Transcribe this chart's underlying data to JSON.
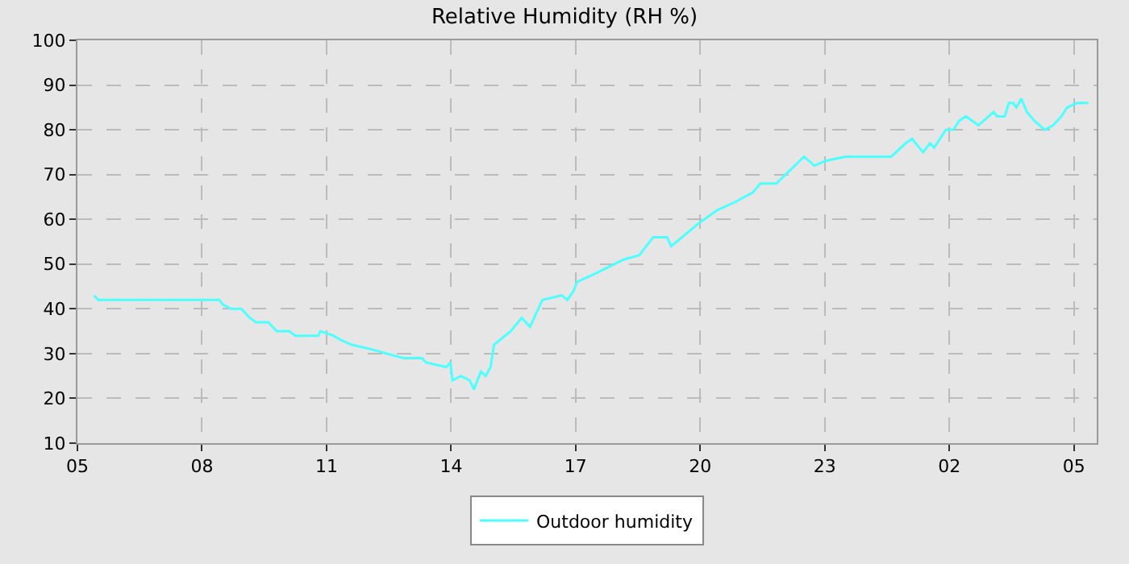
{
  "chart_data": {
    "type": "line",
    "title": "Relative Humidity (RH %)",
    "xlim": [
      "--01-01T05:00",
      "--01-02T05:33"
    ],
    "xticks": [
      {
        "value": "--01-01T05:00",
        "label": "05"
      },
      {
        "value": "--01-01T08:00",
        "label": "08"
      },
      {
        "value": "--01-01T11:00",
        "label": "11"
      },
      {
        "value": "--01-01T14:00",
        "label": "14"
      },
      {
        "value": "--01-01T17:00",
        "label": "17"
      },
      {
        "value": "--01-01T20:00",
        "label": "20"
      },
      {
        "value": "--01-01T23:00",
        "label": "23"
      },
      {
        "value": "--01-02T02:00",
        "label": "02"
      },
      {
        "value": "--01-02T05:00",
        "label": "05"
      }
    ],
    "ylim": [
      10,
      100
    ],
    "yticks": [
      10,
      20,
      30,
      40,
      50,
      60,
      70,
      80,
      90,
      100
    ],
    "grid": true,
    "legend": "bottom",
    "marker": "none",
    "line_style": "solid",
    "series": [
      {
        "name": "Outdoor humidity",
        "color": "#4dffff",
        "x": [
          "--01-01T05:24",
          "--01-01T05:30",
          "--01-01T08:25",
          "--01-01T08:30",
          "--01-01T08:42",
          "--01-01T08:57",
          "--01-01T09:09",
          "--01-01T09:18",
          "--01-01T09:36",
          "--01-01T09:48",
          "--01-01T10:06",
          "--01-01T10:15",
          "--01-01T10:48",
          "--01-01T10:51",
          "--01-01T11:10",
          "--01-01T11:21",
          "--01-01T11:36",
          "--01-01T12:04",
          "--01-01T12:27",
          "--01-01T12:51",
          "--01-01T13:18",
          "--01-01T13:24",
          "--01-01T13:53",
          "--01-01T13:59",
          "--01-01T14:02",
          "--01-01T14:14",
          "--01-01T14:27",
          "--01-01T14:33",
          "--01-01T14:43",
          "--01-01T14:50",
          "--01-01T14:57",
          "--01-01T15:02",
          "--01-01T15:26",
          "--01-01T15:42",
          "--01-01T15:54",
          "--01-01T16:12",
          "--01-01T16:40",
          "--01-01T16:48",
          "--01-01T16:57",
          "--01-01T17:02",
          "--01-01T17:30",
          "--01-01T18:09",
          "--01-01T18:32",
          "--01-01T18:52",
          "--01-01T19:12",
          "--01-01T19:18",
          "--01-01T19:57",
          "--01-01T20:24",
          "--01-01T20:52",
          "--01-01T21:16",
          "--01-01T21:27",
          "--01-01T21:50",
          "--01-01T22:10",
          "--01-01T22:30",
          "--01-01T22:45",
          "--01-01T23:00",
          "--01-01T23:30",
          "--01-02T00:36",
          "--01-02T00:57",
          "--01-02T01:06",
          "--01-02T01:22",
          "--01-02T01:32",
          "--01-02T01:38",
          "--01-02T01:55",
          "--01-02T02:06",
          "--01-02T02:14",
          "--01-02T02:24",
          "--01-02T02:42",
          "--01-02T03:04",
          "--01-02T03:09",
          "--01-02T03:20",
          "--01-02T03:26",
          "--01-02T03:32",
          "--01-02T03:37",
          "--01-02T03:44",
          "--01-02T03:52",
          "--01-02T04:03",
          "--01-02T04:18",
          "--01-02T04:30",
          "--01-02T04:42",
          "--01-02T04:50",
          "--01-02T05:05",
          "--01-02T05:21"
        ],
        "values": [
          43,
          42,
          42,
          41,
          40,
          40,
          38,
          37,
          37,
          35,
          35,
          34,
          34,
          35,
          34,
          33,
          32,
          31,
          30,
          29,
          29,
          28,
          27,
          28,
          24,
          25,
          24,
          22,
          26,
          25,
          27,
          32,
          35,
          38,
          36,
          42,
          43,
          42,
          44,
          46,
          48,
          51,
          52,
          56,
          56,
          54,
          59,
          62,
          64,
          66,
          68,
          68,
          71,
          74,
          72,
          73,
          74,
          74,
          77,
          78,
          75,
          77,
          76,
          80,
          80,
          82,
          83,
          81,
          84,
          83,
          83,
          86,
          86,
          85,
          87,
          84,
          82,
          80,
          81,
          83,
          85,
          86,
          86
        ]
      }
    ]
  }
}
